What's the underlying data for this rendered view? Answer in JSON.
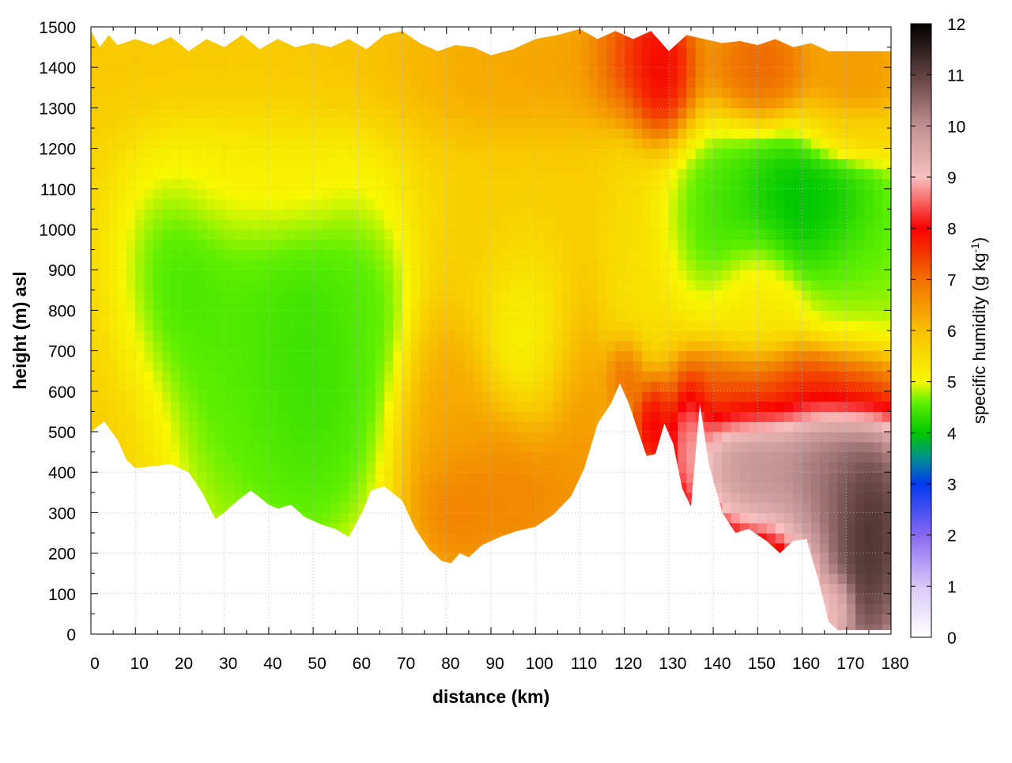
{
  "chart_data": {
    "type": "heatmap",
    "title": "",
    "xlabel": "distance (km)",
    "ylabel": "height (m) asl",
    "colorbar_label_main": "specific humidity (g kg",
    "colorbar_label_exp": "-1",
    "colorbar_label_close": ")",
    "xlim": [
      0,
      180
    ],
    "ylim": [
      0,
      1500
    ],
    "clim": [
      0,
      12
    ],
    "x_ticks": [
      "0",
      "10",
      "20",
      "30",
      "40",
      "50",
      "60",
      "70",
      "80",
      "90",
      "100",
      "110",
      "120",
      "130",
      "140",
      "150",
      "160",
      "170",
      "180"
    ],
    "y_ticks": [
      "0",
      "100",
      "200",
      "300",
      "400",
      "500",
      "600",
      "700",
      "800",
      "900",
      "1000",
      "1100",
      "1200",
      "1300",
      "1400",
      "1500"
    ],
    "c_ticks": [
      "0",
      "1",
      "2",
      "3",
      "4",
      "5",
      "6",
      "7",
      "8",
      "9",
      "10",
      "11",
      "12"
    ],
    "grid": true,
    "colormap": [
      {
        "value": 0,
        "color": "#ffffff"
      },
      {
        "value": 1,
        "color": "#d8c8f8"
      },
      {
        "value": 2,
        "color": "#8868f0"
      },
      {
        "value": 3,
        "color": "#0038f0"
      },
      {
        "value": 3.5,
        "color": "#009090"
      },
      {
        "value": 4,
        "color": "#00c800"
      },
      {
        "value": 4.6,
        "color": "#60f000"
      },
      {
        "value": 5,
        "color": "#f8f800"
      },
      {
        "value": 6,
        "color": "#f8c000"
      },
      {
        "value": 7,
        "color": "#f07000"
      },
      {
        "value": 8,
        "color": "#f80000"
      },
      {
        "value": 9,
        "color": "#f8c0c0"
      },
      {
        "value": 10,
        "color": "#c09090"
      },
      {
        "value": 11,
        "color": "#604040"
      },
      {
        "value": 12,
        "color": "#000000"
      }
    ],
    "ground_profile": [
      {
        "x": 0,
        "y": 500
      },
      {
        "x": 3,
        "y": 525
      },
      {
        "x": 6,
        "y": 480
      },
      {
        "x": 8,
        "y": 430
      },
      {
        "x": 10,
        "y": 410
      },
      {
        "x": 14,
        "y": 415
      },
      {
        "x": 18,
        "y": 420
      },
      {
        "x": 22,
        "y": 400
      },
      {
        "x": 25,
        "y": 350
      },
      {
        "x": 28,
        "y": 285
      },
      {
        "x": 30,
        "y": 300
      },
      {
        "x": 33,
        "y": 330
      },
      {
        "x": 36,
        "y": 355
      },
      {
        "x": 40,
        "y": 320
      },
      {
        "x": 42,
        "y": 310
      },
      {
        "x": 45,
        "y": 320
      },
      {
        "x": 48,
        "y": 290
      },
      {
        "x": 52,
        "y": 270
      },
      {
        "x": 55,
        "y": 260
      },
      {
        "x": 58,
        "y": 240
      },
      {
        "x": 61,
        "y": 300
      },
      {
        "x": 63,
        "y": 355
      },
      {
        "x": 66,
        "y": 365
      },
      {
        "x": 70,
        "y": 330
      },
      {
        "x": 73,
        "y": 260
      },
      {
        "x": 76,
        "y": 210
      },
      {
        "x": 79,
        "y": 180
      },
      {
        "x": 81,
        "y": 175
      },
      {
        "x": 83,
        "y": 200
      },
      {
        "x": 85,
        "y": 190
      },
      {
        "x": 88,
        "y": 220
      },
      {
        "x": 92,
        "y": 240
      },
      {
        "x": 96,
        "y": 255
      },
      {
        "x": 100,
        "y": 265
      },
      {
        "x": 104,
        "y": 295
      },
      {
        "x": 108,
        "y": 340
      },
      {
        "x": 111,
        "y": 410
      },
      {
        "x": 114,
        "y": 520
      },
      {
        "x": 117,
        "y": 570
      },
      {
        "x": 119,
        "y": 620
      },
      {
        "x": 121,
        "y": 570
      },
      {
        "x": 123,
        "y": 505
      },
      {
        "x": 125,
        "y": 440
      },
      {
        "x": 127,
        "y": 445
      },
      {
        "x": 129,
        "y": 520
      },
      {
        "x": 131,
        "y": 470
      },
      {
        "x": 133,
        "y": 360
      },
      {
        "x": 135,
        "y": 315
      },
      {
        "x": 137,
        "y": 570
      },
      {
        "x": 139,
        "y": 420
      },
      {
        "x": 142,
        "y": 300
      },
      {
        "x": 145,
        "y": 250
      },
      {
        "x": 148,
        "y": 260
      },
      {
        "x": 152,
        "y": 230
      },
      {
        "x": 155,
        "y": 200
      },
      {
        "x": 158,
        "y": 230
      },
      {
        "x": 161,
        "y": 235
      },
      {
        "x": 164,
        "y": 120
      },
      {
        "x": 166,
        "y": 30
      },
      {
        "x": 168,
        "y": 10
      },
      {
        "x": 180,
        "y": 10
      }
    ],
    "top_profile": [
      {
        "x": 0,
        "y": 1490
      },
      {
        "x": 2,
        "y": 1450
      },
      {
        "x": 4,
        "y": 1480
      },
      {
        "x": 6,
        "y": 1455
      },
      {
        "x": 10,
        "y": 1470
      },
      {
        "x": 14,
        "y": 1455
      },
      {
        "x": 18,
        "y": 1475
      },
      {
        "x": 22,
        "y": 1440
      },
      {
        "x": 26,
        "y": 1470
      },
      {
        "x": 30,
        "y": 1450
      },
      {
        "x": 34,
        "y": 1480
      },
      {
        "x": 38,
        "y": 1445
      },
      {
        "x": 42,
        "y": 1470
      },
      {
        "x": 46,
        "y": 1450
      },
      {
        "x": 50,
        "y": 1460
      },
      {
        "x": 54,
        "y": 1450
      },
      {
        "x": 58,
        "y": 1470
      },
      {
        "x": 62,
        "y": 1445
      },
      {
        "x": 66,
        "y": 1480
      },
      {
        "x": 70,
        "y": 1490
      },
      {
        "x": 74,
        "y": 1460
      },
      {
        "x": 78,
        "y": 1440
      },
      {
        "x": 82,
        "y": 1455
      },
      {
        "x": 86,
        "y": 1450
      },
      {
        "x": 90,
        "y": 1430
      },
      {
        "x": 95,
        "y": 1445
      },
      {
        "x": 100,
        "y": 1470
      },
      {
        "x": 105,
        "y": 1480
      },
      {
        "x": 110,
        "y": 1495
      },
      {
        "x": 114,
        "y": 1470
      },
      {
        "x": 118,
        "y": 1490
      },
      {
        "x": 122,
        "y": 1470
      },
      {
        "x": 126,
        "y": 1490
      },
      {
        "x": 130,
        "y": 1440
      },
      {
        "x": 134,
        "y": 1480
      },
      {
        "x": 138,
        "y": 1470
      },
      {
        "x": 142,
        "y": 1460
      },
      {
        "x": 146,
        "y": 1465
      },
      {
        "x": 150,
        "y": 1455
      },
      {
        "x": 154,
        "y": 1470
      },
      {
        "x": 158,
        "y": 1450
      },
      {
        "x": 162,
        "y": 1460
      },
      {
        "x": 166,
        "y": 1440
      },
      {
        "x": 180,
        "y": 1440
      }
    ],
    "blobs": [
      {
        "x": 0,
        "y": 700,
        "value": 5.8,
        "sx": 10,
        "sy": 500
      },
      {
        "x": 15,
        "y": 900,
        "value": 4.1,
        "sx": 8,
        "sy": 170
      },
      {
        "x": 32,
        "y": 750,
        "value": 4.4,
        "sx": 12,
        "sy": 300
      },
      {
        "x": 50,
        "y": 700,
        "value": 4.2,
        "sx": 9,
        "sy": 260
      },
      {
        "x": 60,
        "y": 850,
        "value": 4.5,
        "sx": 6,
        "sy": 200
      },
      {
        "x": 42,
        "y": 1150,
        "value": 5.4,
        "sx": 20,
        "sy": 120
      },
      {
        "x": 40,
        "y": 1380,
        "value": 6.0,
        "sx": 30,
        "sy": 100
      },
      {
        "x": 80,
        "y": 500,
        "value": 6.4,
        "sx": 6,
        "sy": 150
      },
      {
        "x": 82,
        "y": 320,
        "value": 7.0,
        "sx": 5,
        "sy": 80
      },
      {
        "x": 97,
        "y": 380,
        "value": 6.9,
        "sx": 8,
        "sy": 120
      },
      {
        "x": 100,
        "y": 760,
        "value": 5.0,
        "sx": 6,
        "sy": 160
      },
      {
        "x": 110,
        "y": 550,
        "value": 6.6,
        "sx": 5,
        "sy": 200
      },
      {
        "x": 105,
        "y": 1050,
        "value": 5.8,
        "sx": 15,
        "sy": 150
      },
      {
        "x": 100,
        "y": 1380,
        "value": 6.5,
        "sx": 20,
        "sy": 100
      },
      {
        "x": 123,
        "y": 1400,
        "value": 8.3,
        "sx": 6,
        "sy": 80
      },
      {
        "x": 128,
        "y": 1380,
        "value": 8.6,
        "sx": 4,
        "sy": 90
      },
      {
        "x": 120,
        "y": 640,
        "value": 7.8,
        "sx": 2.5,
        "sy": 60
      },
      {
        "x": 126,
        "y": 520,
        "value": 8.4,
        "sx": 2.5,
        "sy": 60
      },
      {
        "x": 120,
        "y": 900,
        "value": 5.3,
        "sx": 4,
        "sy": 200
      },
      {
        "x": 140,
        "y": 1050,
        "value": 4.3,
        "sx": 8,
        "sy": 120
      },
      {
        "x": 160,
        "y": 1060,
        "value": 3.7,
        "sx": 10,
        "sy": 100
      },
      {
        "x": 175,
        "y": 850,
        "value": 4.5,
        "sx": 8,
        "sy": 160
      },
      {
        "x": 150,
        "y": 820,
        "value": 5.3,
        "sx": 5,
        "sy": 100
      },
      {
        "x": 150,
        "y": 600,
        "value": 7.4,
        "sx": 10,
        "sy": 60
      },
      {
        "x": 170,
        "y": 620,
        "value": 7.6,
        "sx": 8,
        "sy": 50
      },
      {
        "x": 135,
        "y": 480,
        "value": 9.0,
        "sx": 2.5,
        "sy": 80
      },
      {
        "x": 150,
        "y": 420,
        "value": 10.5,
        "sx": 8,
        "sy": 90
      },
      {
        "x": 165,
        "y": 400,
        "value": 10.8,
        "sx": 6,
        "sy": 120
      },
      {
        "x": 175,
        "y": 250,
        "value": 12.0,
        "sx": 6,
        "sy": 200
      },
      {
        "x": 168,
        "y": 70,
        "value": 9.0,
        "sx": 2,
        "sy": 40
      },
      {
        "x": 150,
        "y": 1400,
        "value": 7.3,
        "sx": 6,
        "sy": 70
      },
      {
        "x": 172,
        "y": 1380,
        "value": 6.6,
        "sx": 6,
        "sy": 90
      },
      {
        "x": 172,
        "y": 1240,
        "value": 5.6,
        "sx": 6,
        "sy": 40
      }
    ],
    "background_value": 5.6
  }
}
